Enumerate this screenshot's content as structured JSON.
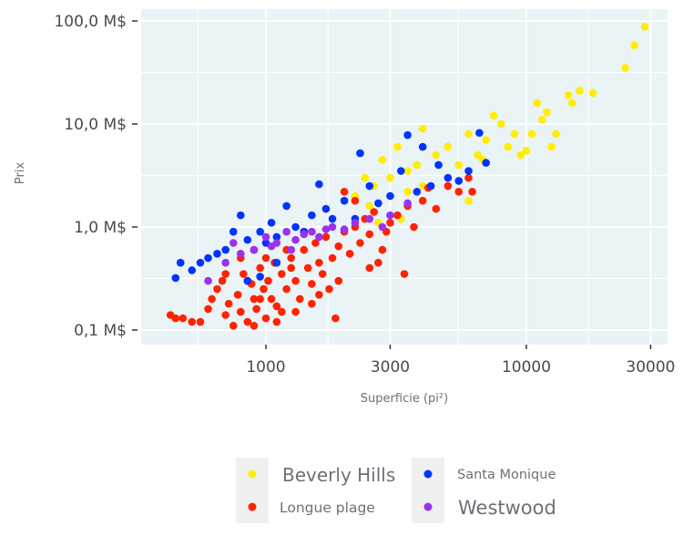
{
  "chart_data": {
    "type": "scatter",
    "xlabel": "Superficie (pi²)",
    "ylabel": "Prix",
    "x_scale": "log",
    "y_scale": "log",
    "xlim": [
      340,
      34000
    ],
    "ylim": [
      0.08,
      120
    ],
    "x_ticks": [
      1000,
      3000,
      10000,
      30000
    ],
    "x_tick_labels": [
      "1000",
      "3000",
      "10000",
      "30000"
    ],
    "y_ticks": [
      0.1,
      1,
      10,
      100
    ],
    "y_tick_labels": [
      "0,1 M$",
      "1,0 M$",
      "10,0 M$",
      "100,0 M$"
    ],
    "grid": true,
    "panel_background": "#eaf3f5",
    "legend_position": "bottom",
    "series": [
      {
        "name": "Beverly Hills",
        "color": "#ffee00",
        "points": [
          [
            28500,
            88
          ],
          [
            26000,
            58
          ],
          [
            24000,
            35
          ],
          [
            18000,
            20
          ],
          [
            16000,
            21
          ],
          [
            15000,
            16
          ],
          [
            14500,
            19
          ],
          [
            12000,
            13
          ],
          [
            11000,
            16
          ],
          [
            11500,
            11
          ],
          [
            10500,
            8
          ],
          [
            10000,
            5.5
          ],
          [
            9000,
            8
          ],
          [
            8000,
            10
          ],
          [
            8500,
            6
          ],
          [
            7000,
            7
          ],
          [
            6500,
            5
          ],
          [
            6000,
            8
          ],
          [
            5500,
            4
          ],
          [
            5000,
            6
          ],
          [
            4500,
            5
          ],
          [
            4000,
            9
          ],
          [
            3800,
            4
          ],
          [
            3500,
            3.5
          ],
          [
            3200,
            6
          ],
          [
            3000,
            3
          ],
          [
            2800,
            4.5
          ],
          [
            2600,
            2.5
          ],
          [
            2400,
            3
          ],
          [
            2200,
            2
          ],
          [
            2000,
            1.8
          ],
          [
            2500,
            1.6
          ],
          [
            3000,
            2
          ],
          [
            3500,
            2.2
          ],
          [
            4000,
            2.5
          ],
          [
            6000,
            1.8
          ],
          [
            5000,
            3
          ],
          [
            7500,
            12
          ],
          [
            9500,
            5
          ],
          [
            12500,
            6
          ],
          [
            13000,
            8
          ],
          [
            6800,
            4.5
          ],
          [
            3300,
            1.2
          ],
          [
            2700,
            1.1
          ]
        ]
      },
      {
        "name": "Longue plage",
        "color": "#ff2200",
        "points": [
          [
            430,
            0.14
          ],
          [
            450,
            0.13
          ],
          [
            480,
            0.13
          ],
          [
            520,
            0.12
          ],
          [
            560,
            0.12
          ],
          [
            600,
            0.16
          ],
          [
            620,
            0.2
          ],
          [
            650,
            0.25
          ],
          [
            680,
            0.3
          ],
          [
            700,
            0.14
          ],
          [
            720,
            0.18
          ],
          [
            750,
            0.11
          ],
          [
            780,
            0.22
          ],
          [
            800,
            0.15
          ],
          [
            820,
            0.35
          ],
          [
            850,
            0.12
          ],
          [
            880,
            0.28
          ],
          [
            900,
            0.2
          ],
          [
            920,
            0.16
          ],
          [
            950,
            0.4
          ],
          [
            980,
            0.25
          ],
          [
            1000,
            0.13
          ],
          [
            1020,
            0.3
          ],
          [
            1050,
            0.2
          ],
          [
            1080,
            0.45
          ],
          [
            1100,
            0.17
          ],
          [
            1150,
            0.35
          ],
          [
            1200,
            0.25
          ],
          [
            1250,
            0.5
          ],
          [
            1300,
            0.3
          ],
          [
            1350,
            0.2
          ],
          [
            1400,
            0.6
          ],
          [
            1450,
            0.4
          ],
          [
            1500,
            0.28
          ],
          [
            1550,
            0.7
          ],
          [
            1600,
            0.45
          ],
          [
            1650,
            0.35
          ],
          [
            1700,
            0.8
          ],
          [
            1800,
            0.5
          ],
          [
            1850,
            0.13
          ],
          [
            1900,
            0.65
          ],
          [
            2000,
            0.9
          ],
          [
            2100,
            0.55
          ],
          [
            2200,
            1.0
          ],
          [
            2300,
            0.7
          ],
          [
            2400,
            1.2
          ],
          [
            2500,
            0.85
          ],
          [
            2600,
            1.4
          ],
          [
            2800,
            0.6
          ],
          [
            3000,
            1.1
          ],
          [
            3200,
            1.3
          ],
          [
            3400,
            0.35
          ],
          [
            3500,
            1.6
          ],
          [
            3700,
            1.0
          ],
          [
            4000,
            1.8
          ],
          [
            4500,
            1.5
          ],
          [
            5000,
            2.5
          ],
          [
            5500,
            2.2
          ],
          [
            6000,
            3
          ],
          [
            6200,
            2.2
          ],
          [
            900,
            0.11
          ],
          [
            1100,
            0.12
          ],
          [
            1300,
            0.15
          ],
          [
            1000,
            0.5
          ],
          [
            1200,
            0.6
          ],
          [
            800,
            0.5
          ],
          [
            2500,
            0.4
          ],
          [
            2700,
            0.45
          ],
          [
            1900,
            0.3
          ],
          [
            1600,
            0.22
          ],
          [
            700,
            0.35
          ],
          [
            1400,
            0.9
          ],
          [
            2200,
            1.8
          ],
          [
            2000,
            2.2
          ],
          [
            2900,
            0.9
          ],
          [
            4200,
            2.4
          ],
          [
            1150,
            0.15
          ],
          [
            1500,
            0.18
          ],
          [
            1750,
            0.25
          ],
          [
            950,
            0.2
          ],
          [
            850,
            0.3
          ],
          [
            1250,
            0.4
          ]
        ]
      },
      {
        "name": "Santa Monique",
        "color": "#0033ff",
        "points": [
          [
            450,
            0.32
          ],
          [
            470,
            0.45
          ],
          [
            520,
            0.38
          ],
          [
            560,
            0.45
          ],
          [
            600,
            0.5
          ],
          [
            650,
            0.55
          ],
          [
            700,
            0.6
          ],
          [
            750,
            0.9
          ],
          [
            800,
            1.3
          ],
          [
            850,
            0.75
          ],
          [
            900,
            0.6
          ],
          [
            950,
            0.9
          ],
          [
            1000,
            0.7
          ],
          [
            1050,
            1.1
          ],
          [
            1100,
            0.8
          ],
          [
            1200,
            1.6
          ],
          [
            1300,
            1.0
          ],
          [
            1400,
            0.9
          ],
          [
            1500,
            1.3
          ],
          [
            1600,
            2.6
          ],
          [
            1700,
            1.5
          ],
          [
            1800,
            1.2
          ],
          [
            2000,
            1.8
          ],
          [
            2200,
            1.2
          ],
          [
            2300,
            5.2
          ],
          [
            2500,
            2.5
          ],
          [
            2700,
            1.7
          ],
          [
            3000,
            2.0
          ],
          [
            3300,
            3.5
          ],
          [
            3500,
            7.8
          ],
          [
            3800,
            2.2
          ],
          [
            4000,
            6.0
          ],
          [
            4300,
            2.5
          ],
          [
            4600,
            4.0
          ],
          [
            5000,
            3.0
          ],
          [
            5500,
            2.8
          ],
          [
            6000,
            3.5
          ],
          [
            6600,
            8.2
          ],
          [
            7000,
            4.2
          ],
          [
            850,
            0.3
          ],
          [
            950,
            0.33
          ],
          [
            1100,
            0.45
          ]
        ]
      },
      {
        "name": "Westwood",
        "color": "#9933ee",
        "points": [
          [
            600,
            0.3
          ],
          [
            700,
            0.45
          ],
          [
            750,
            0.7
          ],
          [
            800,
            0.55
          ],
          [
            900,
            0.6
          ],
          [
            1000,
            0.8
          ],
          [
            1100,
            0.7
          ],
          [
            1200,
            0.9
          ],
          [
            1300,
            0.75
          ],
          [
            1400,
            0.85
          ],
          [
            1500,
            0.9
          ],
          [
            1600,
            0.8
          ],
          [
            1700,
            0.95
          ],
          [
            1800,
            1.0
          ],
          [
            2000,
            0.95
          ],
          [
            2200,
            1.1
          ],
          [
            2500,
            1.2
          ],
          [
            2800,
            1.0
          ],
          [
            3000,
            1.3
          ],
          [
            3500,
            1.7
          ],
          [
            1050,
            0.65
          ],
          [
            1250,
            0.6
          ]
        ]
      }
    ],
    "legend": [
      {
        "label": "Beverly Hills",
        "color": "#ffee00"
      },
      {
        "label": "Santa Monique",
        "color": "#0033ff"
      },
      {
        "label": "Longue plage",
        "color": "#ff2200"
      },
      {
        "label": "Westwood",
        "color": "#9933ee"
      }
    ]
  }
}
